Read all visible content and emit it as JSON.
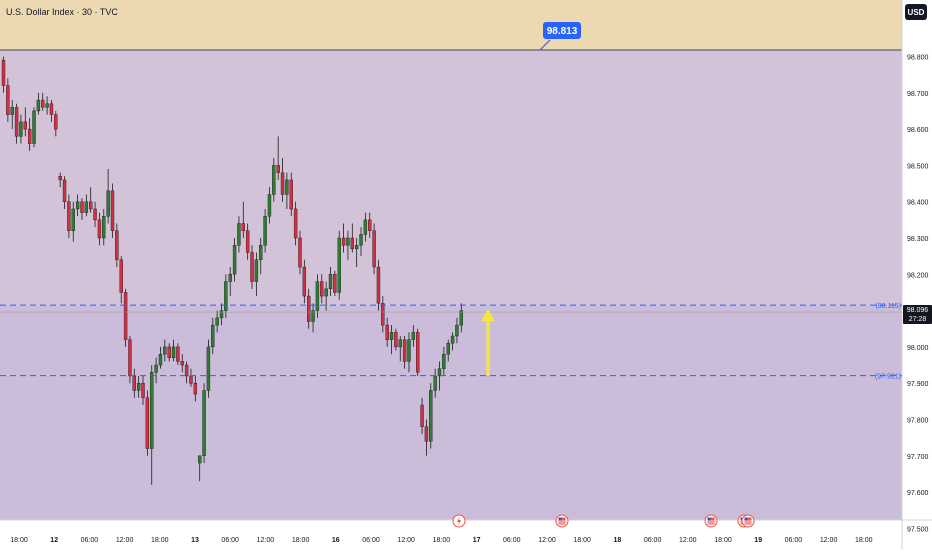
{
  "header": {
    "title": "U.S. Dollar Index · 30 · TVC",
    "currency_button": "USD"
  },
  "colors": {
    "up": "#26a69a",
    "down": "#ef5350",
    "candle_up_body": "#2e7d32",
    "candle_down_body": "#d32f45",
    "zone_tan": "#ecd9b2",
    "zone_purple": "#d3c3d8",
    "zone_lower": "#cbbdd9",
    "level_line": "#2962ff",
    "arrow": "#f5e642",
    "label_blue": "#2962ff"
  },
  "annotations": {
    "target_label": "98.813",
    "upper_level_label": "(98.115)",
    "lower_level_label": "(97.921)",
    "last_price": "98.096",
    "countdown": "27:28"
  },
  "chart_data": {
    "type": "candlestick",
    "title": "U.S. Dollar Index · 30 · TVC",
    "ylim": [
      97.5,
      98.9
    ],
    "y_ticks": [
      "98.800",
      "98.700",
      "98.600",
      "98.500",
      "98.400",
      "98.300",
      "98.200",
      "98.100",
      "98.000",
      "97.900",
      "97.800",
      "97.700",
      "97.600",
      "97.500"
    ],
    "x_ticks": [
      "18:00",
      "12",
      "06:00",
      "12:00",
      "18:00",
      "13",
      "06:00",
      "12:00",
      "18:00",
      "16",
      "06:00",
      "12:00",
      "18:00",
      "17",
      "06:00",
      "12:00",
      "18:00",
      "18",
      "06:00",
      "12:00",
      "18:00",
      "19",
      "06:00",
      "12:00",
      "18:00"
    ],
    "horizontal_levels": [
      {
        "label": "(98.115)",
        "value": 98.115
      },
      {
        "label": "(97.921)",
        "value": 97.921
      },
      {
        "label": "98.813",
        "value": 98.813
      }
    ],
    "last_price": 98.096,
    "candles": [
      [
        98.79,
        98.8,
        98.7,
        98.72
      ],
      [
        98.72,
        98.74,
        98.62,
        98.64
      ],
      [
        98.64,
        98.68,
        98.6,
        98.66
      ],
      [
        98.66,
        98.67,
        98.56,
        98.58
      ],
      [
        98.58,
        98.64,
        98.56,
        98.62
      ],
      [
        98.62,
        98.66,
        98.58,
        98.6
      ],
      [
        98.6,
        98.63,
        98.54,
        98.56
      ],
      [
        98.56,
        98.66,
        98.55,
        98.65
      ],
      [
        98.65,
        98.7,
        98.64,
        98.68
      ],
      [
        98.68,
        98.7,
        98.65,
        98.66
      ],
      [
        98.66,
        98.69,
        98.64,
        98.67
      ],
      [
        98.67,
        98.68,
        98.62,
        98.64
      ],
      [
        98.64,
        98.65,
        98.58,
        98.6
      ],
      [
        98.47,
        98.48,
        98.44,
        98.46
      ],
      [
        98.46,
        98.47,
        98.38,
        98.4
      ],
      [
        98.4,
        98.42,
        98.3,
        98.32
      ],
      [
        98.32,
        98.4,
        98.29,
        98.38
      ],
      [
        98.38,
        98.42,
        98.36,
        98.4
      ],
      [
        98.4,
        98.41,
        98.35,
        98.37
      ],
      [
        98.37,
        98.42,
        98.36,
        98.4
      ],
      [
        98.4,
        98.44,
        98.37,
        98.38
      ],
      [
        98.38,
        98.4,
        98.33,
        98.35
      ],
      [
        98.35,
        98.37,
        98.28,
        98.3
      ],
      [
        98.3,
        98.38,
        98.28,
        98.36
      ],
      [
        98.36,
        98.49,
        98.34,
        98.43
      ],
      [
        98.43,
        98.45,
        98.3,
        98.32
      ],
      [
        98.32,
        98.34,
        98.22,
        98.24
      ],
      [
        98.24,
        98.25,
        98.12,
        98.15
      ],
      [
        98.15,
        98.16,
        98.0,
        98.02
      ],
      [
        98.02,
        98.03,
        97.9,
        97.92
      ],
      [
        97.92,
        97.94,
        97.86,
        97.88
      ],
      [
        97.88,
        97.92,
        97.86,
        97.9
      ],
      [
        97.9,
        97.92,
        97.84,
        97.86
      ],
      [
        97.86,
        97.88,
        97.7,
        97.72
      ],
      [
        97.72,
        97.95,
        97.62,
        97.93
      ],
      [
        97.93,
        97.97,
        97.9,
        97.95
      ],
      [
        97.95,
        98.0,
        97.94,
        97.98
      ],
      [
        97.98,
        98.02,
        97.96,
        98.0
      ],
      [
        98.0,
        98.01,
        97.96,
        97.97
      ],
      [
        97.97,
        98.02,
        97.96,
        98.0
      ],
      [
        98.0,
        98.01,
        97.95,
        97.96
      ],
      [
        97.96,
        97.98,
        97.93,
        97.95
      ],
      [
        97.95,
        97.96,
        97.9,
        97.92
      ],
      [
        97.92,
        97.94,
        97.89,
        97.9
      ],
      [
        97.9,
        97.92,
        97.85,
        97.87
      ],
      [
        97.68,
        97.7,
        97.63,
        97.7
      ],
      [
        97.7,
        97.9,
        97.68,
        97.88
      ],
      [
        97.88,
        98.02,
        97.86,
        98.0
      ],
      [
        98.0,
        98.08,
        97.98,
        98.06
      ],
      [
        98.06,
        98.1,
        98.04,
        98.08
      ],
      [
        98.08,
        98.12,
        98.06,
        98.1
      ],
      [
        98.1,
        98.2,
        98.08,
        98.18
      ],
      [
        98.18,
        98.22,
        98.14,
        98.2
      ],
      [
        98.2,
        98.3,
        98.18,
        98.28
      ],
      [
        98.28,
        98.36,
        98.26,
        98.34
      ],
      [
        98.34,
        98.4,
        98.3,
        98.32
      ],
      [
        98.32,
        98.34,
        98.24,
        98.26
      ],
      [
        98.26,
        98.28,
        98.16,
        98.18
      ],
      [
        98.18,
        98.26,
        98.14,
        98.24
      ],
      [
        98.24,
        98.3,
        98.2,
        98.28
      ],
      [
        98.28,
        98.38,
        98.26,
        98.36
      ],
      [
        98.36,
        98.44,
        98.34,
        98.42
      ],
      [
        98.42,
        98.52,
        98.4,
        98.5
      ],
      [
        98.5,
        98.58,
        98.46,
        98.48
      ],
      [
        98.48,
        98.52,
        98.4,
        98.42
      ],
      [
        98.42,
        98.48,
        98.38,
        98.46
      ],
      [
        98.46,
        98.48,
        98.36,
        98.38
      ],
      [
        98.38,
        98.4,
        98.28,
        98.3
      ],
      [
        98.3,
        98.32,
        98.2,
        98.22
      ],
      [
        98.22,
        98.24,
        98.12,
        98.14
      ],
      [
        98.14,
        98.16,
        98.05,
        98.07
      ],
      [
        98.07,
        98.12,
        98.04,
        98.1
      ],
      [
        98.1,
        98.2,
        98.08,
        98.18
      ],
      [
        98.18,
        98.2,
        98.12,
        98.14
      ],
      [
        98.14,
        98.18,
        98.1,
        98.16
      ],
      [
        98.16,
        98.22,
        98.14,
        98.2
      ],
      [
        98.2,
        98.21,
        98.14,
        98.15
      ],
      [
        98.15,
        98.32,
        98.13,
        98.3
      ],
      [
        98.3,
        98.34,
        98.26,
        98.28
      ],
      [
        98.28,
        98.32,
        98.24,
        98.3
      ],
      [
        98.3,
        98.34,
        98.26,
        98.27
      ],
      [
        98.27,
        98.3,
        98.22,
        98.28
      ],
      [
        98.28,
        98.33,
        98.25,
        98.31
      ],
      [
        98.31,
        98.37,
        98.29,
        98.35
      ],
      [
        98.35,
        98.37,
        98.3,
        98.32
      ],
      [
        98.32,
        98.34,
        98.2,
        98.22
      ],
      [
        98.22,
        98.24,
        98.1,
        98.12
      ],
      [
        98.12,
        98.14,
        98.04,
        98.06
      ],
      [
        98.06,
        98.08,
        98.0,
        98.02
      ],
      [
        98.02,
        98.06,
        97.98,
        98.04
      ],
      [
        98.04,
        98.05,
        97.99,
        98.0
      ],
      [
        98.0,
        98.03,
        97.96,
        98.02
      ],
      [
        98.02,
        98.03,
        97.94,
        97.96
      ],
      [
        97.96,
        98.04,
        97.93,
        98.02
      ],
      [
        98.02,
        98.06,
        98.0,
        98.04
      ],
      [
        98.04,
        98.05,
        97.92,
        97.93
      ],
      [
        97.84,
        97.86,
        97.76,
        97.78
      ],
      [
        97.78,
        97.8,
        97.7,
        97.74
      ],
      [
        97.74,
        97.9,
        97.72,
        97.88
      ],
      [
        97.88,
        97.94,
        97.86,
        97.92
      ],
      [
        97.92,
        97.96,
        97.88,
        97.94
      ],
      [
        97.94,
        98.0,
        97.92,
        97.98
      ],
      [
        97.98,
        98.02,
        97.96,
        98.01
      ],
      [
        98.01,
        98.04,
        97.99,
        98.03
      ],
      [
        98.03,
        98.08,
        98.01,
        98.06
      ],
      [
        98.06,
        98.12,
        98.04,
        98.1
      ]
    ]
  }
}
